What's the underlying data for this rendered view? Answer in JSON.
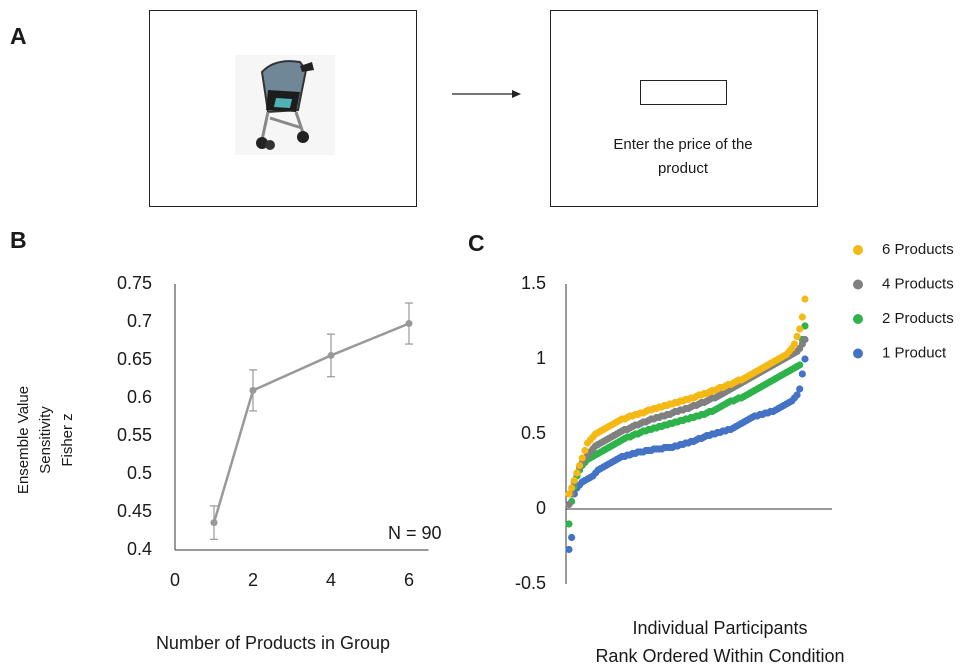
{
  "panel_labels": [
    "A",
    "B",
    "C"
  ],
  "task": {
    "prompt": "Enter the price of the product"
  },
  "chart_data": [
    {
      "type": "line",
      "x": [
        1,
        2,
        4,
        6
      ],
      "values": [
        0.436,
        0.61,
        0.656,
        0.698
      ],
      "errors": [
        0.022,
        0.027,
        0.028,
        0.027
      ],
      "color": "#999999",
      "xlim": [
        0,
        6.5
      ],
      "xticks": [
        0,
        2,
        4,
        6
      ],
      "ylim": [
        0.4,
        0.75
      ],
      "yticks": [
        0.4,
        0.45,
        0.5,
        0.55,
        0.6,
        0.65,
        0.7,
        0.75
      ],
      "xlabel": "Number of Products in Group",
      "ylabel": [
        "Ensemble Value",
        "Sensitivity",
        "Fisher z"
      ],
      "annotation": "N = 90"
    },
    {
      "type": "scatter",
      "ylim": [
        -0.5,
        1.5
      ],
      "yticks": [
        -0.5,
        0,
        0.5,
        1,
        1.5
      ],
      "xlabel": [
        "Individual Participants",
        "Rank Ordered Within Condition"
      ],
      "legend": "right",
      "series": [
        {
          "name": "6 Products",
          "color": "#f5b915",
          "values": [
            0.1,
            0.14,
            0.19,
            0.24,
            0.29,
            0.34,
            0.39,
            0.44,
            0.46,
            0.48,
            0.5,
            0.51,
            0.52,
            0.53,
            0.54,
            0.55,
            0.56,
            0.57,
            0.58,
            0.59,
            0.6,
            0.6,
            0.61,
            0.62,
            0.62,
            0.63,
            0.63,
            0.64,
            0.64,
            0.65,
            0.66,
            0.66,
            0.67,
            0.67,
            0.68,
            0.68,
            0.69,
            0.69,
            0.7,
            0.7,
            0.71,
            0.71,
            0.72,
            0.72,
            0.73,
            0.73,
            0.74,
            0.74,
            0.75,
            0.76,
            0.76,
            0.77,
            0.77,
            0.78,
            0.79,
            0.79,
            0.8,
            0.81,
            0.81,
            0.82,
            0.83,
            0.83,
            0.84,
            0.85,
            0.86,
            0.86,
            0.87,
            0.88,
            0.89,
            0.9,
            0.91,
            0.92,
            0.93,
            0.94,
            0.95,
            0.96,
            0.97,
            0.98,
            0.99,
            1.0,
            1.01,
            1.02,
            1.03,
            1.05,
            1.07,
            1.1,
            1.15,
            1.2,
            1.28,
            1.4
          ]
        },
        {
          "name": "4 Products",
          "color": "#808080",
          "values": [
            0.03,
            0.1,
            0.18,
            0.24,
            0.28,
            0.31,
            0.34,
            0.36,
            0.38,
            0.4,
            0.42,
            0.43,
            0.44,
            0.45,
            0.46,
            0.47,
            0.48,
            0.49,
            0.5,
            0.51,
            0.52,
            0.53,
            0.53,
            0.54,
            0.55,
            0.56,
            0.56,
            0.57,
            0.58,
            0.58,
            0.59,
            0.6,
            0.6,
            0.61,
            0.61,
            0.62,
            0.62,
            0.63,
            0.63,
            0.64,
            0.65,
            0.65,
            0.66,
            0.66,
            0.67,
            0.67,
            0.68,
            0.69,
            0.69,
            0.7,
            0.71,
            0.71,
            0.72,
            0.73,
            0.74,
            0.74,
            0.75,
            0.76,
            0.77,
            0.78,
            0.79,
            0.8,
            0.81,
            0.82,
            0.83,
            0.84,
            0.85,
            0.86,
            0.87,
            0.88,
            0.89,
            0.9,
            0.91,
            0.92,
            0.93,
            0.94,
            0.95,
            0.96,
            0.97,
            0.98,
            0.99,
            1.0,
            1.01,
            1.02,
            1.03,
            1.04,
            1.05,
            1.07,
            1.1,
            1.13
          ]
        },
        {
          "name": "2 Products",
          "color": "#2db34a",
          "values": [
            -0.1,
            0.05,
            0.15,
            0.22,
            0.26,
            0.29,
            0.31,
            0.33,
            0.34,
            0.35,
            0.36,
            0.37,
            0.38,
            0.39,
            0.4,
            0.41,
            0.42,
            0.43,
            0.44,
            0.45,
            0.46,
            0.47,
            0.48,
            0.48,
            0.49,
            0.5,
            0.5,
            0.51,
            0.52,
            0.52,
            0.53,
            0.53,
            0.54,
            0.54,
            0.55,
            0.55,
            0.56,
            0.56,
            0.57,
            0.57,
            0.58,
            0.58,
            0.59,
            0.59,
            0.6,
            0.6,
            0.61,
            0.61,
            0.62,
            0.62,
            0.63,
            0.63,
            0.64,
            0.65,
            0.65,
            0.66,
            0.67,
            0.68,
            0.69,
            0.7,
            0.71,
            0.72,
            0.72,
            0.73,
            0.74,
            0.74,
            0.75,
            0.76,
            0.77,
            0.78,
            0.79,
            0.8,
            0.81,
            0.82,
            0.83,
            0.84,
            0.85,
            0.86,
            0.87,
            0.88,
            0.89,
            0.9,
            0.91,
            0.92,
            0.93,
            0.94,
            0.95,
            0.96,
            1.13,
            1.22
          ]
        },
        {
          "name": "1 Product",
          "color": "#4472c4",
          "values": [
            -0.27,
            -0.19,
            0.1,
            0.14,
            0.16,
            0.18,
            0.19,
            0.2,
            0.21,
            0.22,
            0.24,
            0.26,
            0.27,
            0.28,
            0.29,
            0.3,
            0.31,
            0.32,
            0.33,
            0.34,
            0.35,
            0.35,
            0.36,
            0.36,
            0.37,
            0.37,
            0.38,
            0.38,
            0.38,
            0.39,
            0.39,
            0.39,
            0.4,
            0.4,
            0.4,
            0.4,
            0.41,
            0.41,
            0.41,
            0.41,
            0.42,
            0.42,
            0.43,
            0.43,
            0.44,
            0.44,
            0.45,
            0.45,
            0.46,
            0.47,
            0.47,
            0.48,
            0.49,
            0.49,
            0.5,
            0.5,
            0.51,
            0.51,
            0.52,
            0.52,
            0.53,
            0.53,
            0.54,
            0.55,
            0.56,
            0.57,
            0.58,
            0.59,
            0.6,
            0.61,
            0.62,
            0.62,
            0.63,
            0.63,
            0.64,
            0.64,
            0.65,
            0.65,
            0.66,
            0.67,
            0.68,
            0.69,
            0.7,
            0.71,
            0.72,
            0.74,
            0.76,
            0.8,
            0.9,
            1.0
          ]
        }
      ]
    }
  ]
}
